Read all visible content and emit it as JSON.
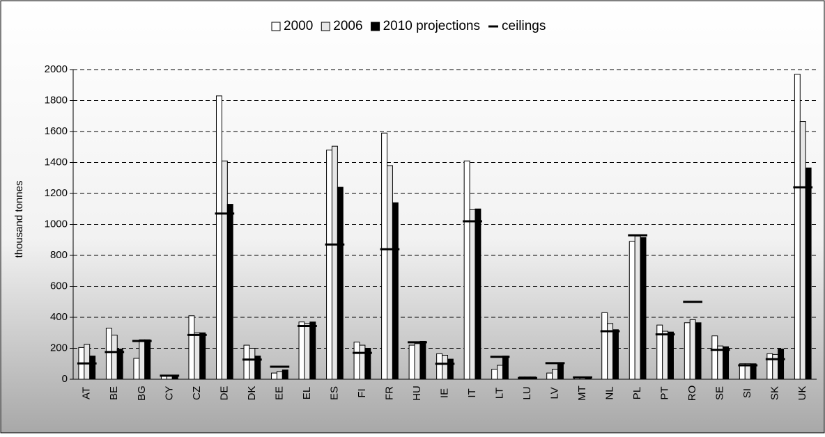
{
  "chart_data": {
    "type": "bar",
    "y_label": "thousand tonnes",
    "categories": [
      "AT",
      "BE",
      "BG",
      "CY",
      "CZ",
      "DE",
      "DK",
      "EE",
      "EL",
      "ES",
      "FI",
      "FR",
      "HU",
      "IE",
      "IT",
      "LT",
      "LU",
      "LV",
      "MT",
      "NL",
      "PL",
      "PT",
      "RO",
      "SE",
      "SI",
      "SK",
      "UK"
    ],
    "series": [
      {
        "name": "2000",
        "color": "#ffffff",
        "values": [
          205,
          330,
          135,
          20,
          410,
          1830,
          220,
          40,
          370,
          1480,
          240,
          1590,
          220,
          165,
          1410,
          65,
          15,
          40,
          10,
          430,
          890,
          350,
          365,
          280,
          100,
          165,
          1970
        ]
      },
      {
        "name": "2006",
        "color": "#e6e6e6",
        "values": [
          225,
          285,
          255,
          25,
          300,
          1410,
          200,
          50,
          360,
          1505,
          220,
          1380,
          230,
          155,
          1095,
          90,
          15,
          65,
          10,
          360,
          925,
          310,
          385,
          215,
          100,
          160,
          1665
        ]
      },
      {
        "name": "2010 projections",
        "color": "#000000",
        "values": [
          150,
          195,
          255,
          27,
          300,
          1130,
          150,
          60,
          370,
          1240,
          200,
          1140,
          245,
          130,
          1100,
          150,
          15,
          100,
          10,
          320,
          915,
          305,
          365,
          210,
          100,
          195,
          1365
        ]
      }
    ],
    "markers": {
      "name": "ceilings",
      "color": "#000000",
      "values": [
        102,
        176,
        247,
        23,
        286,
        1070,
        127,
        81,
        344,
        870,
        170,
        840,
        239,
        100,
        1020,
        145,
        8,
        104,
        12,
        310,
        930,
        290,
        500,
        190,
        90,
        130,
        1240
      ]
    },
    "ylim": [
      0,
      2000
    ],
    "yticks": [
      0,
      200,
      400,
      600,
      800,
      1000,
      1200,
      1400,
      1600,
      1800,
      2000
    ],
    "grid": true
  }
}
